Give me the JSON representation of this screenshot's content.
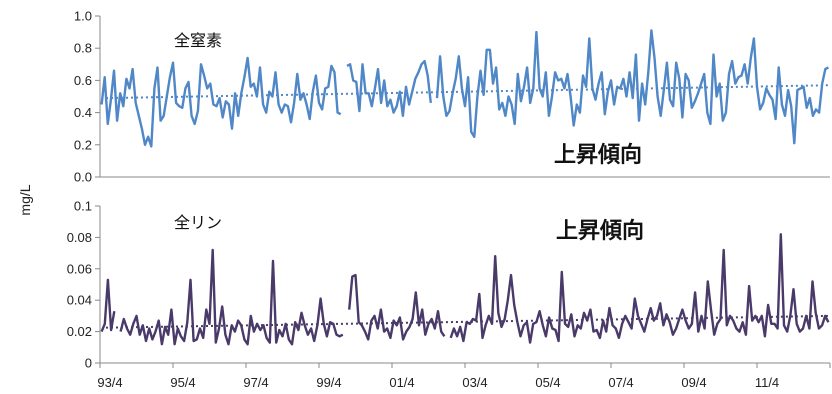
{
  "chart_data": {
    "type": "line",
    "ylabel": "mg/L",
    "xlabel": "",
    "x_ticks": [
      "93/4",
      "95/4",
      "97/4",
      "99/4",
      "01/4",
      "03/4",
      "05/4",
      "07/4",
      "09/4",
      "11/4"
    ],
    "x_range": [
      "93/4",
      "13/4"
    ],
    "grid": false,
    "panels": [
      {
        "annotation": "全窒素",
        "trend_label": "上昇傾向",
        "ylim": [
          0.0,
          1.0
        ],
        "y_ticks": [
          "0.0",
          "0.2",
          "0.4",
          "0.6",
          "0.8",
          "1.0"
        ],
        "y_tick_values": [
          0.0,
          0.2,
          0.4,
          0.6,
          0.8,
          1.0
        ],
        "line_color": "#4f87c7",
        "trend": {
          "start": 0.49,
          "end": 0.57
        },
        "values": [
          0.45,
          0.62,
          0.33,
          0.48,
          0.66,
          0.35,
          0.52,
          0.44,
          0.61,
          0.55,
          0.67,
          0.46,
          0.38,
          0.3,
          0.2,
          0.25,
          0.19,
          0.55,
          0.68,
          0.35,
          0.38,
          0.5,
          0.62,
          0.71,
          0.46,
          0.44,
          0.43,
          0.55,
          0.59,
          0.38,
          0.33,
          0.41,
          0.7,
          0.63,
          0.55,
          0.58,
          0.45,
          0.44,
          0.49,
          0.37,
          0.47,
          0.45,
          0.3,
          0.52,
          0.38,
          0.52,
          0.62,
          0.74,
          0.56,
          0.58,
          0.5,
          0.68,
          0.45,
          0.4,
          0.53,
          0.5,
          0.65,
          0.45,
          0.4,
          0.45,
          0.44,
          0.34,
          0.46,
          0.64,
          0.48,
          0.52,
          0.45,
          0.36,
          0.53,
          0.63,
          0.46,
          0.42,
          0.55,
          0.56,
          0.69,
          0.65,
          0.4,
          0.39,
          null,
          0.69,
          0.7,
          0.6,
          0.59,
          0.41,
          0.7,
          0.52,
          0.52,
          0.44,
          0.55,
          0.67,
          0.46,
          0.6,
          0.44,
          0.48,
          0.4,
          0.44,
          0.53,
          0.38,
          0.56,
          0.45,
          0.53,
          0.61,
          0.65,
          0.7,
          0.72,
          0.63,
          0.46,
          null,
          0.49,
          0.75,
          0.5,
          0.38,
          0.41,
          0.52,
          0.61,
          0.75,
          0.55,
          0.44,
          0.62,
          0.28,
          0.25,
          0.5,
          0.66,
          0.51,
          0.79,
          0.79,
          0.58,
          0.68,
          0.42,
          0.46,
          0.38,
          0.5,
          0.45,
          0.33,
          0.64,
          0.47,
          0.56,
          0.68,
          0.46,
          0.55,
          0.9,
          0.55,
          0.5,
          0.65,
          0.38,
          0.5,
          0.65,
          0.6,
          0.61,
          0.55,
          0.64,
          0.5,
          0.32,
          0.45,
          0.4,
          0.63,
          0.56,
          0.86,
          0.55,
          0.48,
          0.58,
          0.65,
          0.39,
          0.53,
          0.6,
          0.45,
          0.56,
          0.55,
          0.61,
          0.5,
          0.65,
          0.49,
          0.76,
          0.35,
          0.58,
          0.45,
          0.65,
          0.91,
          0.74,
          0.5,
          0.38,
          0.54,
          0.71,
          0.48,
          0.44,
          0.71,
          0.61,
          0.37,
          0.64,
          0.6,
          0.43,
          0.47,
          0.52,
          0.58,
          0.64,
          0.4,
          0.33,
          0.76,
          0.5,
          0.58,
          0.35,
          0.4,
          0.64,
          0.72,
          0.58,
          0.62,
          0.63,
          0.7,
          0.58,
          0.74,
          0.86,
          0.56,
          0.42,
          0.46,
          0.55,
          0.51,
          0.48,
          0.36,
          0.68,
          0.45,
          0.38,
          0.54,
          0.44,
          0.21,
          0.54,
          0.55,
          0.56,
          0.43,
          0.49,
          0.38,
          0.42,
          0.4,
          0.58,
          0.67,
          0.68
        ]
      },
      {
        "annotation": "全リン",
        "trend_label": "上昇傾向",
        "ylim": [
          0,
          0.1
        ],
        "y_ticks": [
          "0",
          "0.02",
          "0.04",
          "0.06",
          "0.08",
          "0.1"
        ],
        "y_tick_values": [
          0,
          0.02,
          0.04,
          0.06,
          0.08,
          0.1
        ],
        "line_color": "#4a3a6a",
        "trend": {
          "start": 0.0225,
          "end": 0.03
        },
        "values": [
          0.02,
          0.025,
          0.053,
          0.021,
          0.033,
          null,
          0.02,
          0.028,
          0.022,
          0.018,
          0.025,
          0.03,
          0.018,
          0.024,
          0.014,
          0.022,
          0.015,
          0.02,
          0.027,
          0.012,
          0.023,
          0.018,
          0.034,
          0.012,
          0.022,
          0.017,
          0.014,
          0.026,
          0.053,
          0.014,
          0.015,
          0.022,
          0.016,
          0.034,
          0.025,
          0.072,
          0.013,
          0.022,
          0.036,
          0.018,
          0.012,
          0.024,
          0.02,
          0.027,
          0.024,
          0.015,
          0.012,
          0.03,
          0.02,
          0.025,
          0.021,
          0.024,
          0.016,
          0.013,
          0.065,
          0.013,
          0.021,
          0.017,
          0.025,
          0.015,
          0.012,
          0.026,
          0.021,
          0.032,
          0.024,
          0.018,
          0.022,
          0.014,
          0.024,
          0.041,
          0.025,
          0.017,
          0.026,
          0.025,
          0.018,
          0.017,
          0.018,
          null,
          0.034,
          0.055,
          0.056,
          0.026,
          0.024,
          0.02,
          0.015,
          0.027,
          0.03,
          0.022,
          0.034,
          0.02,
          0.022,
          0.016,
          0.027,
          0.024,
          0.029,
          0.015,
          0.02,
          0.023,
          0.028,
          0.045,
          0.024,
          0.034,
          0.018,
          0.025,
          0.028,
          0.022,
          0.033,
          0.02,
          0.017,
          null,
          0.016,
          0.022,
          0.017,
          0.023,
          0.014,
          0.026,
          0.025,
          0.028,
          0.027,
          0.044,
          0.016,
          0.024,
          0.03,
          0.025,
          0.068,
          0.032,
          0.023,
          0.028,
          0.04,
          0.056,
          0.037,
          0.026,
          0.017,
          0.024,
          0.026,
          0.013,
          0.025,
          0.026,
          0.033,
          0.024,
          0.017,
          0.029,
          0.022,
          0.021,
          0.014,
          0.058,
          0.025,
          0.023,
          0.031,
          0.017,
          0.024,
          0.022,
          0.032,
          0.027,
          0.034,
          0.02,
          0.021,
          0.016,
          0.027,
          0.02,
          0.035,
          0.024,
          0.022,
          0.016,
          0.025,
          0.03,
          0.026,
          0.022,
          0.041,
          0.03,
          0.025,
          0.02,
          0.028,
          0.035,
          0.027,
          0.03,
          0.038,
          0.024,
          0.031,
          0.026,
          0.018,
          0.022,
          0.028,
          0.034,
          0.027,
          0.022,
          0.025,
          0.045,
          0.02,
          0.03,
          0.022,
          0.052,
          0.034,
          0.018,
          0.025,
          0.028,
          0.072,
          0.024,
          0.03,
          0.027,
          0.022,
          0.02,
          0.026,
          0.018,
          0.049,
          0.027,
          0.03,
          0.026,
          0.03,
          0.017,
          0.037,
          0.025,
          0.025,
          0.022,
          0.082,
          0.024,
          0.02,
          0.03,
          0.047,
          0.025,
          0.02,
          0.022,
          0.03,
          0.022,
          0.052,
          0.032,
          0.022,
          0.024,
          0.03,
          0.026
        ]
      }
    ]
  }
}
